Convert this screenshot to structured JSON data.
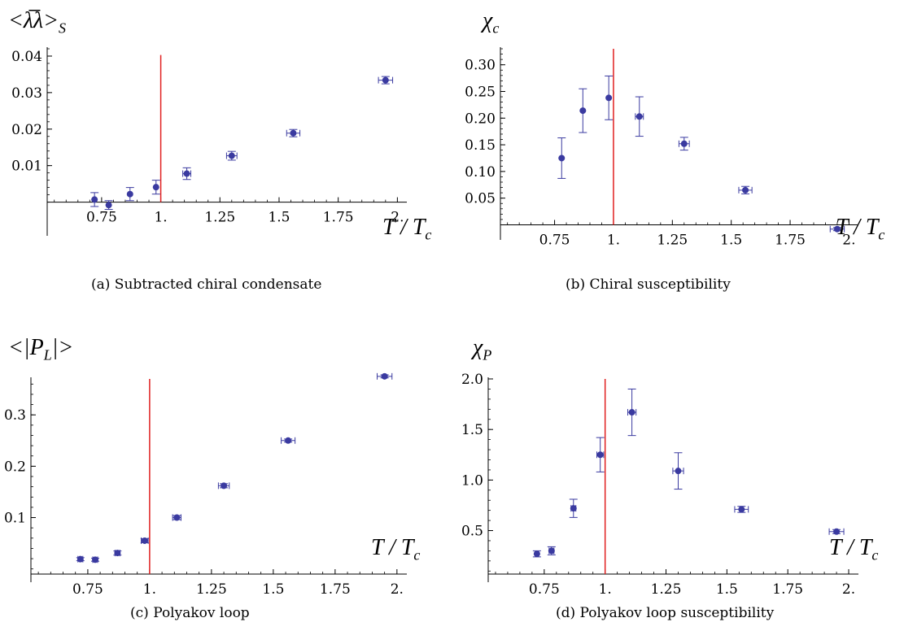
{
  "figures": [
    {
      "caption": "(a) Subtracted chiral condensate",
      "ylabel": "<λ̅λ>",
      "ylabel_sub": "S",
      "xlabel": "T / T",
      "xlabel_sub": "c"
    },
    {
      "caption": "(b) Chiral susceptibility",
      "ylabel": "χ",
      "ylabel_sub": "c",
      "xlabel": "T / T",
      "xlabel_sub": "c"
    },
    {
      "caption": "(c) Polyakov loop",
      "ylabel": "<|P",
      "ylabel_sub": "L",
      "ylabel_tail": "|>",
      "xlabel": "T / T",
      "xlabel_sub": "c"
    },
    {
      "caption": "(d) Polyakov loop susceptibility",
      "ylabel": "χ",
      "ylabel_sub": "P",
      "xlabel": "T / T",
      "xlabel_sub": "c"
    }
  ],
  "chart_data": [
    {
      "type": "scatter",
      "title": "(a) Subtracted chiral condensate",
      "xlabel": "T / Tc",
      "ylabel": "<λ̅λ>S",
      "xlim": [
        0.52,
        2.04
      ],
      "ylim": [
        -0.007,
        0.042
      ],
      "xticks": [
        0.75,
        1.0,
        1.25,
        1.5,
        1.75,
        2.0
      ],
      "xtick_labels": [
        "0.75",
        "1.",
        "1.25",
        "1.5",
        "1.75",
        "2."
      ],
      "yticks": [
        0.01,
        0.02,
        0.03,
        0.04
      ],
      "ytick_labels": [
        "0.01",
        "0.02",
        "0.03",
        "0.04"
      ],
      "axis_cross_y": 0,
      "marker_color": "#3a3aa0",
      "vline": {
        "x": 1.0,
        "y_top": 0.0403,
        "color": "#e02020"
      },
      "series": [
        {
          "x": [
            0.72,
            0.78,
            0.87,
            0.98,
            1.11,
            1.3,
            1.56,
            1.95
          ],
          "y": [
            0.0007,
            -0.0008,
            0.0022,
            0.0041,
            0.0078,
            0.0127,
            0.0189,
            0.0334
          ],
          "yerr": [
            0.0019,
            0.0012,
            0.0018,
            0.0019,
            0.0016,
            0.0012,
            0.001,
            0.001
          ],
          "xerr": [
            0.0,
            0.0,
            0.0,
            0.0,
            0.017,
            0.022,
            0.028,
            0.03
          ]
        }
      ]
    },
    {
      "type": "scatter",
      "title": "(b) Chiral susceptibility",
      "xlabel": "T / Tc",
      "ylabel": "χc",
      "xlim": [
        0.52,
        2.04
      ],
      "ylim": [
        -0.013,
        0.33
      ],
      "xticks": [
        0.75,
        1.0,
        1.25,
        1.5,
        1.75,
        2.0
      ],
      "xtick_labels": [
        "0.75",
        "1.",
        "1.25",
        "1.5",
        "1.75",
        "2."
      ],
      "yticks": [
        0.05,
        0.1,
        0.15,
        0.2,
        0.25,
        0.3
      ],
      "ytick_labels": [
        "0.05",
        "0.10",
        "0.15",
        "0.20",
        "0.25",
        "0.30"
      ],
      "axis_cross_y": 0,
      "marker_color": "#3a3aa0",
      "vline": {
        "x": 1.0,
        "y_top": 0.33,
        "color": "#e02020"
      },
      "series": [
        {
          "x": [
            0.78,
            0.87,
            0.98,
            1.11,
            1.3,
            1.56,
            1.95
          ],
          "y": [
            0.125,
            0.214,
            0.238,
            0.203,
            0.152,
            0.065,
            -0.008
          ],
          "yerr": [
            0.038,
            0.041,
            0.041,
            0.037,
            0.012,
            0.007,
            0.003
          ],
          "xerr": [
            0.0,
            0.0,
            0.0,
            0.017,
            0.022,
            0.028,
            0.03
          ]
        }
      ]
    },
    {
      "type": "scatter",
      "title": "(c) Polyakov loop",
      "xlabel": "T / Tc",
      "ylabel": "<|PL|>",
      "xlim": [
        0.52,
        2.04
      ],
      "ylim": [
        -0.01,
        0.37
      ],
      "xticks": [
        0.75,
        1.0,
        1.25,
        1.5,
        1.75,
        2.0
      ],
      "xtick_labels": [
        "0.75",
        "1.",
        "1.25",
        "1.5",
        "1.75",
        "2."
      ],
      "yticks": [
        0.1,
        0.2,
        0.3
      ],
      "ytick_labels": [
        "0.1",
        "0.2",
        "0.3"
      ],
      "axis_cross_y": -0.01,
      "marker_color": "#3a3aa0",
      "vline": {
        "x": 1.0,
        "y_top": 0.37,
        "color": "#e02020"
      },
      "series": [
        {
          "x": [
            0.72,
            0.78,
            0.87,
            0.98,
            1.11,
            1.3,
            1.56,
            1.95
          ],
          "y": [
            0.019,
            0.018,
            0.031,
            0.055,
            0.1,
            0.162,
            0.25,
            0.375
          ],
          "yerr": [
            0.003,
            0.003,
            0.004,
            0.004,
            0.004,
            0.004,
            0.003,
            0.003
          ],
          "xerr": [
            0.01,
            0.01,
            0.01,
            0.014,
            0.017,
            0.022,
            0.028,
            0.03
          ]
        }
      ]
    },
    {
      "type": "scatter",
      "title": "(d) Polyakov loop susceptibility",
      "xlabel": "T / Tc",
      "ylabel": "χP",
      "xlim": [
        0.52,
        2.04
      ],
      "ylim": [
        0.07,
        2.0
      ],
      "xticks": [
        0.75,
        1.0,
        1.25,
        1.5,
        1.75,
        2.0
      ],
      "xtick_labels": [
        "0.75",
        "1.",
        "1.25",
        "1.5",
        "1.75",
        "2."
      ],
      "yticks": [
        0.5,
        1.0,
        1.5,
        2.0
      ],
      "ytick_labels": [
        "0.5",
        "1.0",
        "1.5",
        "2.0"
      ],
      "axis_cross_y": 0.07,
      "marker_color": "#3a3aa0",
      "vline": {
        "x": 1.0,
        "y_top": 2.0,
        "color": "#e02020"
      },
      "series": [
        {
          "x": [
            0.72,
            0.78,
            0.87,
            0.98,
            1.11,
            1.3,
            1.56,
            1.95
          ],
          "y": [
            0.27,
            0.3,
            0.72,
            1.25,
            1.67,
            1.09,
            0.71,
            0.49
          ],
          "yerr": [
            0.03,
            0.04,
            0.09,
            0.17,
            0.23,
            0.18,
            0.03,
            0.02
          ],
          "xerr": [
            0.0,
            0.01,
            0.01,
            0.014,
            0.017,
            0.022,
            0.028,
            0.03
          ]
        }
      ]
    }
  ]
}
